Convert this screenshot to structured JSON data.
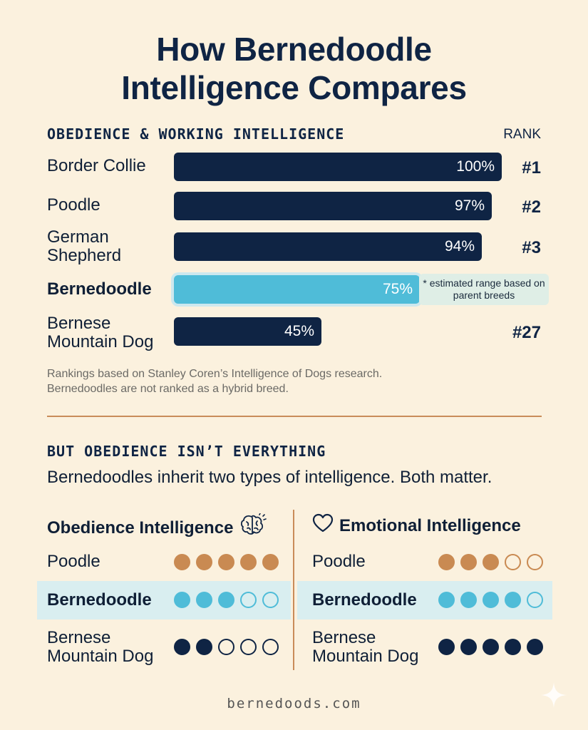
{
  "title_line1": "How Bernedoodle",
  "title_line2": "Intelligence Compares",
  "section1_heading": "OBEDIENCE & WORKING INTELLIGENCE",
  "rank_heading": "RANK",
  "chart_data": {
    "type": "bar",
    "orientation": "horizontal",
    "categories": [
      "Border Collie",
      "Poodle",
      "German Shepherd",
      "Bernedoodle",
      "Bernese Mountain Dog"
    ],
    "values": [
      100,
      97,
      94,
      75,
      45
    ],
    "value_labels": [
      "100%",
      "97%",
      "94%",
      "75%",
      "45%"
    ],
    "ranks": [
      "#1",
      "#2",
      "#3",
      "",
      "#27"
    ],
    "highlight": "Bernedoodle",
    "highlight_note": "* estimated range based on parent breeds",
    "xlim": [
      0,
      100
    ],
    "colors": {
      "bar": "#0f2444",
      "highlight": "#4fbcd8"
    }
  },
  "footnote_line1": "Rankings based on Stanley Coren’s Intelligence of Dogs research.",
  "footnote_line2": "Bernedoodles are not ranked as a hybrid breed.",
  "section2_heading": "BUT OBEDIENCE ISN’T EVERYTHING",
  "section2_subtitle": "Bernedoodles inherit two types of intelligence. Both matter.",
  "comparison": {
    "obedience": {
      "heading": "Obedience Intelligence",
      "icon": "brain-icon",
      "rows": [
        {
          "label": "Poodle",
          "filled": 5,
          "color": "#c98a52"
        },
        {
          "label": "Bernedoodle",
          "filled": 3,
          "color": "#4fbcd8"
        },
        {
          "label": "Bernese Mountain Dog",
          "filled": 2,
          "color": "#0f2444"
        }
      ]
    },
    "emotional": {
      "heading": "Emotional Intelligence",
      "icon": "heart-icon",
      "rows": [
        {
          "label": "Poodle",
          "filled": 3,
          "color": "#c98a52"
        },
        {
          "label": "Bernedoodle",
          "filled": 4,
          "color": "#4fbcd8"
        },
        {
          "label": "Bernese Mountain Dog",
          "filled": 5,
          "color": "#0f2444"
        }
      ]
    },
    "max": 5
  },
  "brand": "bernedoods.com"
}
